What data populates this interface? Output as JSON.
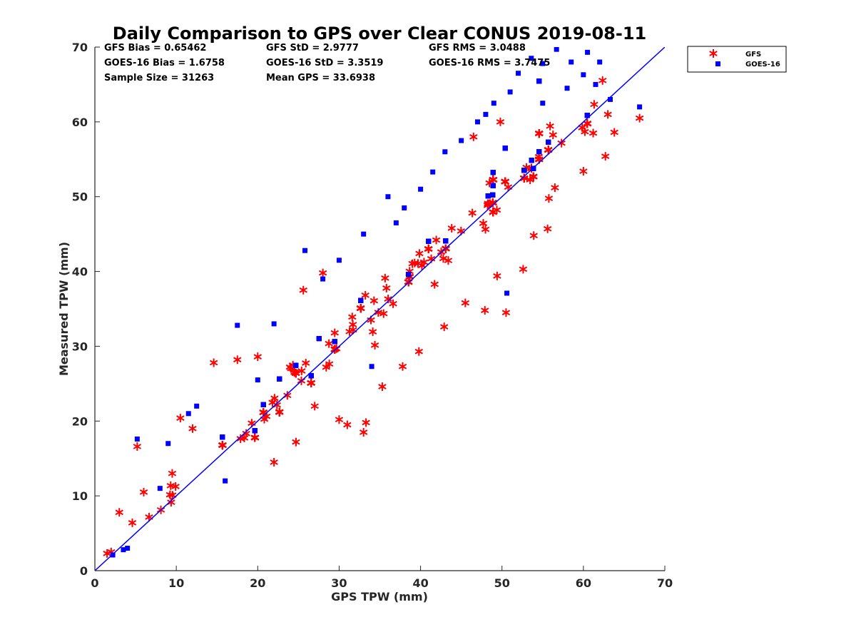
{
  "chart_data": {
    "type": "scatter",
    "title": "Daily Comparison to GPS over Clear CONUS 2019-08-11",
    "xlabel": "GPS TPW (mm)",
    "ylabel": "Measured TPW (mm)",
    "xlim": [
      0,
      70
    ],
    "ylim": [
      0,
      70
    ],
    "xticks": [
      "0",
      "10",
      "20",
      "30",
      "40",
      "50",
      "60",
      "70"
    ],
    "yticks": [
      "0",
      "10",
      "20",
      "30",
      "40",
      "50",
      "60",
      "70"
    ],
    "legend_position": "outside-top-right",
    "stats": [
      [
        "GFS Bias = 0.65462",
        "GFS StD = 2.9777",
        "GFS RMS = 3.0488"
      ],
      [
        "GOES-16 Bias = 1.6758",
        "GOES-16 StD = 3.3519",
        "GOES-16 RMS = 3.7475"
      ],
      [
        "Sample Size = 31263",
        "Mean GPS = 33.6938",
        ""
      ]
    ],
    "reference_line": {
      "name": "1:1 line",
      "x": [
        0,
        70
      ],
      "y": [
        0,
        70
      ],
      "color": "#0000ff"
    },
    "series": [
      {
        "name": "GFS",
        "marker": "asterisk",
        "color": "#ff0000",
        "bias": 0.65,
        "spread": 2.3,
        "n_cloud": 2600,
        "outliers": [
          [
            5.2,
            16.6
          ],
          [
            14.6,
            27.8
          ],
          [
            17.5,
            28.2
          ],
          [
            28,
            39.8
          ],
          [
            33,
            18.5
          ],
          [
            33.3,
            19.8
          ],
          [
            31,
            19.5
          ],
          [
            30,
            20.2
          ],
          [
            42.9,
            32.6
          ],
          [
            47.9,
            34.8
          ],
          [
            50.5,
            34.5
          ],
          [
            55.6,
            45.7
          ],
          [
            52.6,
            40.3
          ],
          [
            56.5,
            51.2
          ],
          [
            62.7,
            55.4
          ],
          [
            63.8,
            58.6
          ],
          [
            66.9,
            60.5
          ],
          [
            61.2,
            58.5
          ],
          [
            2.0,
            2.5
          ],
          [
            1.5,
            2.3
          ],
          [
            3.0,
            7.8
          ],
          [
            9.5,
            13.0
          ],
          [
            10.5,
            20.4
          ],
          [
            20.0,
            28.6
          ],
          [
            25.6,
            37.5
          ],
          [
            24.7,
            17.2
          ],
          [
            35.3,
            24.6
          ],
          [
            37.8,
            27.3
          ],
          [
            39.8,
            29.3
          ],
          [
            45.5,
            35.8
          ],
          [
            49.4,
            39.4
          ],
          [
            53.9,
            44.8
          ],
          [
            60.0,
            53.4
          ],
          [
            63.0,
            61.0
          ],
          [
            46.5,
            58.0
          ],
          [
            49.8,
            60.0
          ],
          [
            4.6,
            6.4
          ],
          [
            6.0,
            10.5
          ],
          [
            12.0,
            19.0
          ],
          [
            27.0,
            22.0
          ],
          [
            22.0,
            14.5
          ]
        ]
      },
      {
        "name": "GOES-16",
        "marker": "square",
        "color": "#0000ff",
        "bias": 1.68,
        "spread": 2.6,
        "n_cloud": 2600,
        "outliers": [
          [
            5.2,
            17.6
          ],
          [
            25.8,
            42.8
          ],
          [
            30.0,
            41.5
          ],
          [
            37.0,
            46.5
          ],
          [
            38.0,
            48.5
          ],
          [
            40.0,
            51.0
          ],
          [
            41.5,
            53.3
          ],
          [
            45.0,
            57.5
          ],
          [
            47.0,
            60.0
          ],
          [
            49.0,
            62.5
          ],
          [
            51.0,
            64.0
          ],
          [
            52.0,
            66.5
          ],
          [
            53.6,
            68.5
          ],
          [
            55.0,
            67.8
          ],
          [
            56.7,
            69.7
          ],
          [
            58.5,
            68.0
          ],
          [
            60.5,
            69.3
          ],
          [
            62.0,
            68.0
          ],
          [
            60.0,
            66.3
          ],
          [
            61.5,
            65.0
          ],
          [
            63.3,
            63.0
          ],
          [
            66.9,
            62.0
          ],
          [
            50.6,
            37.1
          ],
          [
            34.0,
            27.3
          ],
          [
            17.5,
            32.8
          ],
          [
            20.0,
            25.5
          ],
          [
            16.0,
            12.0
          ],
          [
            55.0,
            62.5
          ],
          [
            58.0,
            64.5
          ],
          [
            48.0,
            61.0
          ],
          [
            43.0,
            56.0
          ],
          [
            36.0,
            50.0
          ],
          [
            33.0,
            45.0
          ],
          [
            28.0,
            39.0
          ],
          [
            22.0,
            33.0
          ],
          [
            12.5,
            22.0
          ],
          [
            9.0,
            17.0
          ],
          [
            3.5,
            2.8
          ],
          [
            2.2,
            2.1
          ],
          [
            4.0,
            3.0
          ],
          [
            8.0,
            11.0
          ],
          [
            11.5,
            21.0
          ]
        ]
      }
    ]
  }
}
